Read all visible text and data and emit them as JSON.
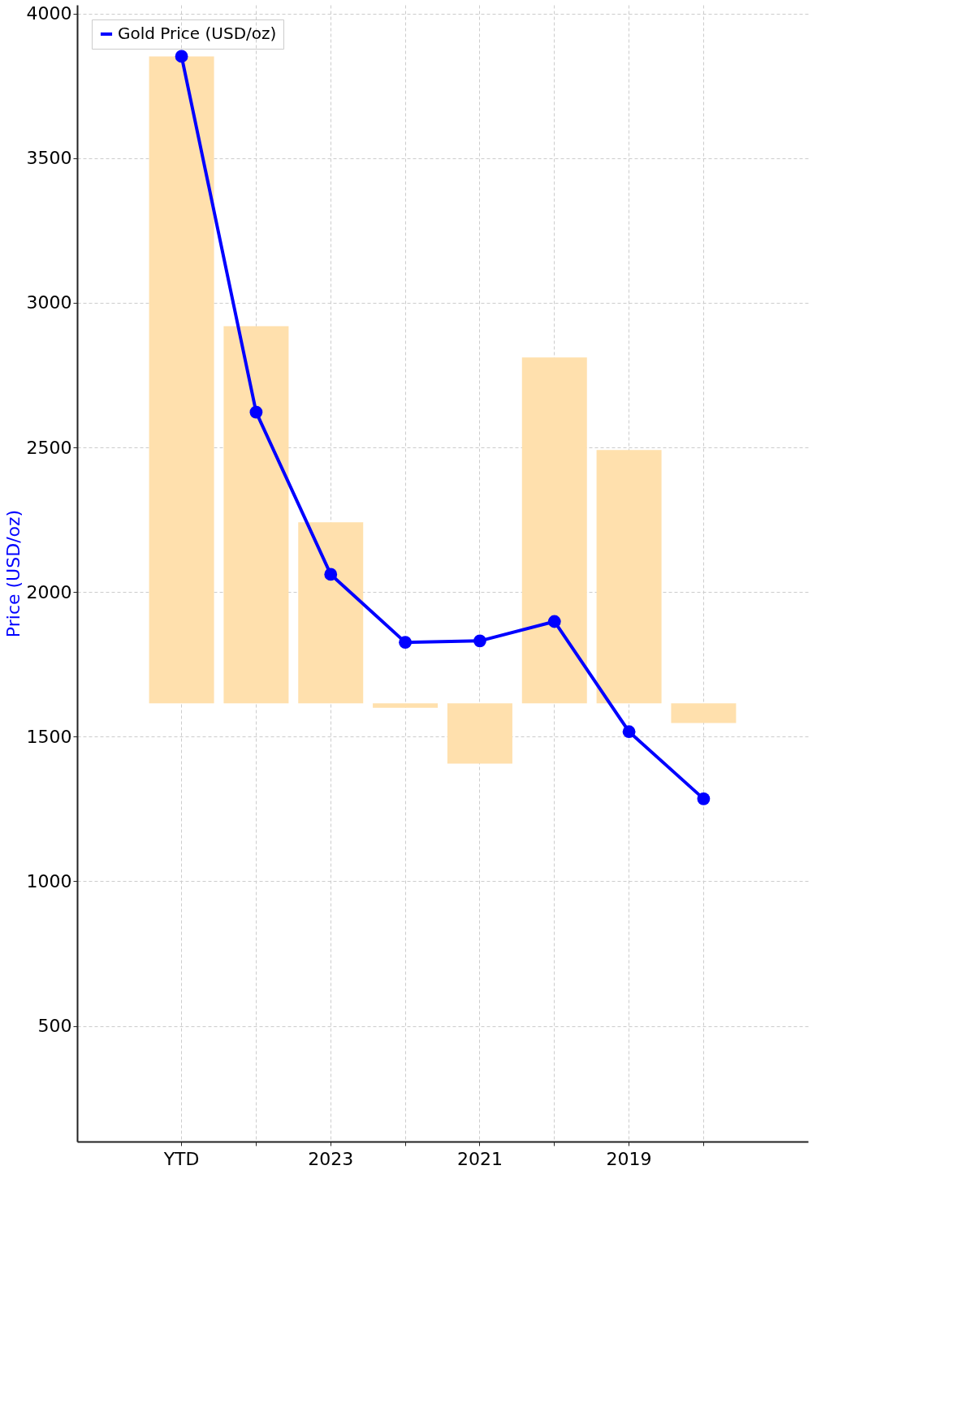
{
  "chart_data": {
    "type": "line",
    "ylabel": "Price (USD/oz)",
    "categories": [
      "YTD",
      null,
      "2023",
      null,
      "2021",
      null,
      "2019",
      null
    ],
    "ylim": [
      100,
      4030
    ],
    "yticks": [
      500,
      1000,
      1500,
      2000,
      2500,
      3000,
      3500,
      4000
    ],
    "grid": true,
    "legend": "top left",
    "marker": "circle",
    "line_style": "solid",
    "series": [
      {
        "type": "bar",
        "color": "#ffe0ad",
        "base": [
          1615,
          1615,
          1615,
          1615,
          1615,
          1615,
          1615,
          1615
        ],
        "values": [
          2237,
          1304,
          626,
          -15,
          -208,
          1196,
          876,
          -68
        ]
      },
      {
        "name": "Gold Price (USD/oz)",
        "color": "#0000ff",
        "values": [
          3852,
          2622,
          2061,
          1826,
          1831,
          1898,
          1517,
          1285
        ]
      }
    ]
  }
}
